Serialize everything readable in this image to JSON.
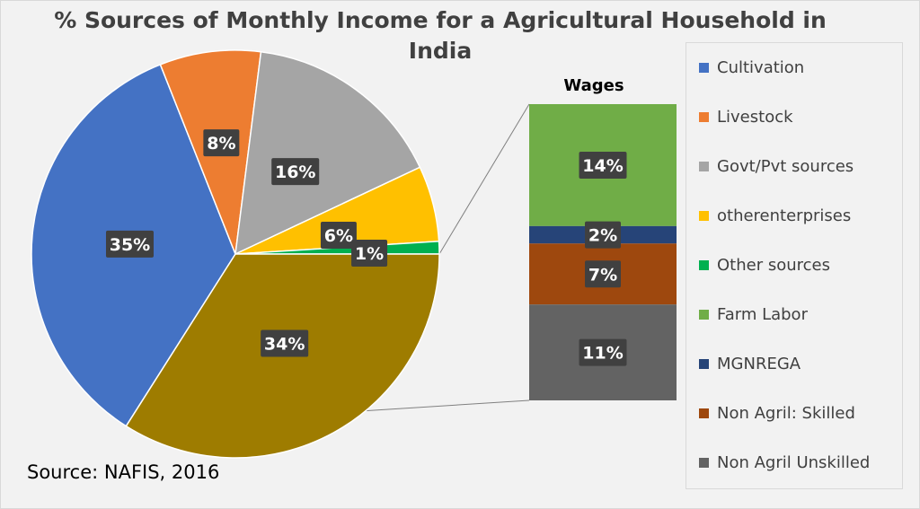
{
  "chart_data": [
    {
      "type": "pie",
      "title": "% Sources of Monthly Income for a Agricultural Household in India",
      "slices": [
        {
          "label": "Cultivation",
          "value": 35,
          "display": "35%",
          "color": "#4472c4"
        },
        {
          "label": "Livestock",
          "value": 8,
          "display": "8%",
          "color": "#ed7d31"
        },
        {
          "label": "Govt/Pvt sources",
          "value": 16,
          "display": "16%",
          "color": "#a5a5a5"
        },
        {
          "label": "otherenterprises",
          "value": 6,
          "display": "6%",
          "color": "#ffc000"
        },
        {
          "label": "Other sources",
          "value": 1,
          "display": "1%",
          "color": "#00b050"
        },
        {
          "label": "Wages",
          "value": 34,
          "display": "34%",
          "color": "#9e7c00"
        }
      ]
    },
    {
      "type": "bar",
      "title": "Wages",
      "stacked": true,
      "segments": [
        {
          "label": "Farm Labor",
          "value": 14,
          "display": "14%",
          "color": "#70ad47"
        },
        {
          "label": "MGNREGA",
          "value": 2,
          "display": "2%",
          "color": "#264478"
        },
        {
          "label": "Non Agril: Skilled",
          "value": 7,
          "display": "7%",
          "color": "#9e480e"
        },
        {
          "label": "Non Agril Unskilled",
          "value": 11,
          "display": "11%",
          "color": "#636363"
        }
      ]
    }
  ],
  "legend": [
    {
      "label": "Cultivation",
      "color": "#4472c4"
    },
    {
      "label": "Livestock",
      "color": "#ed7d31"
    },
    {
      "label": "Govt/Pvt sources",
      "color": "#a5a5a5"
    },
    {
      "label": "otherenterprises",
      "color": "#ffc000"
    },
    {
      "label": "Other sources",
      "color": "#00b050"
    },
    {
      "label": "Farm Labor",
      "color": "#70ad47"
    },
    {
      "label": "MGNREGA",
      "color": "#264478"
    },
    {
      "label": "Non Agril: Skilled",
      "color": "#9e480e"
    },
    {
      "label": "Non Agril Unskilled",
      "color": "#636363"
    }
  ],
  "source": "Source: NAFIS, 2016"
}
